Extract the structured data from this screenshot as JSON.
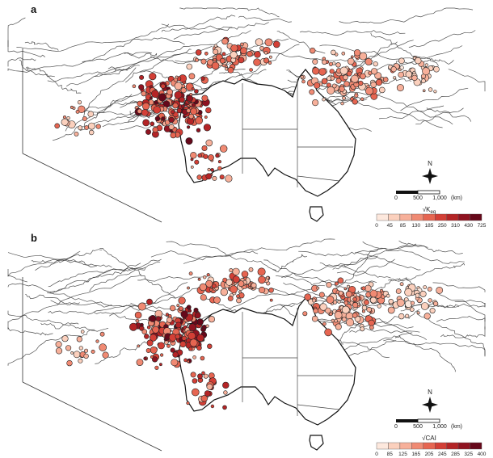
{
  "panels": [
    {
      "id": "a",
      "label": "a",
      "north_label": "N",
      "scale": {
        "ticks": [
          "0",
          "500",
          "1,000"
        ],
        "unit": "(km)"
      },
      "legend": {
        "title": "√K",
        "title_subscript": "eq",
        "ticks": [
          "0",
          "45",
          "85",
          "130",
          "185",
          "250",
          "310",
          "430",
          "725"
        ],
        "colors": [
          "#fde8dd",
          "#fbd0bd",
          "#f7b09a",
          "#f08a73",
          "#e66551",
          "#d33f36",
          "#b42426",
          "#8f1320",
          "#66081a"
        ]
      }
    },
    {
      "id": "b",
      "label": "b",
      "north_label": "N",
      "scale": {
        "ticks": [
          "0",
          "500",
          "1,000"
        ],
        "unit": "(km)"
      },
      "legend": {
        "title": "√CAI",
        "title_subscript": "",
        "ticks": [
          "0",
          "85",
          "125",
          "165",
          "205",
          "245",
          "285",
          "325",
          "400"
        ],
        "colors": [
          "#fde8dd",
          "#fbd0bd",
          "#f7b09a",
          "#f08a73",
          "#e66551",
          "#d33f36",
          "#b42426",
          "#8f1320",
          "#66081a"
        ]
      }
    }
  ]
}
